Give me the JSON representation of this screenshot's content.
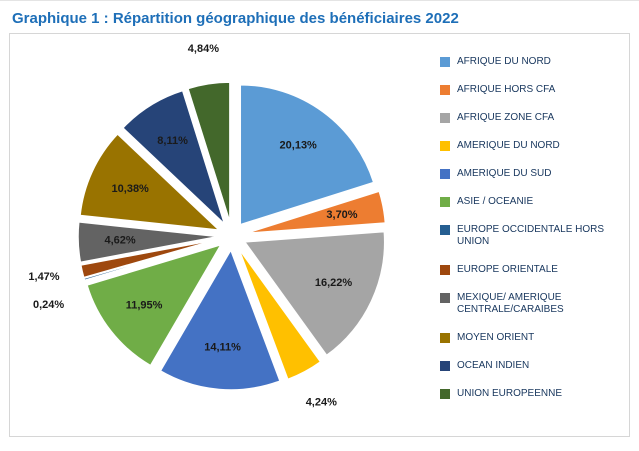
{
  "chart_data": {
    "type": "pie",
    "title": "Graphique 1 : Répartition géographique des bénéficiaires 2022",
    "start_angle_deg": 0,
    "direction": "clockwise",
    "exploded": true,
    "legend_position": "right",
    "value_format": "percent, french decimal comma",
    "slices": [
      {
        "label": "AFRIQUE DU NORD",
        "value": 20.13,
        "display": "20,13%",
        "color": "#5B9BD5",
        "label_placement": "inside"
      },
      {
        "label": "AFRIQUE HORS CFA",
        "value": 3.7,
        "display": "3,70%",
        "color": "#ED7D31",
        "label_placement": "inside"
      },
      {
        "label": "AFRIQUE ZONE CFA",
        "value": 16.22,
        "display": "16,22%",
        "color": "#A5A5A5",
        "label_placement": "inside"
      },
      {
        "label": "AMERIQUE DU NORD",
        "value": 4.24,
        "display": "4,24%",
        "color": "#FFC000",
        "label_placement": "outside"
      },
      {
        "label": "AMERIQUE DU SUD",
        "value": 14.11,
        "display": "14,11%",
        "color": "#4472C4",
        "label_placement": "inside"
      },
      {
        "label": "ASIE / OCEANIE",
        "value": 11.95,
        "display": "11,95%",
        "color": "#70AD47",
        "label_placement": "inside"
      },
      {
        "label": "EUROPE OCCIDENTALE HORS UNION",
        "value": 0.24,
        "display": "0,24%",
        "color": "#255E91",
        "label_placement": "outside"
      },
      {
        "label": "EUROPE ORIENTALE",
        "value": 1.47,
        "display": "1,47%",
        "color": "#9E480E",
        "label_placement": "outside"
      },
      {
        "label": "MEXIQUE/ AMERIQUE CENTRALE/CARAIBES",
        "value": 4.62,
        "display": "4,62%",
        "color": "#636363",
        "label_placement": "inside"
      },
      {
        "label": "MOYEN ORIENT",
        "value": 10.38,
        "display": "10,38%",
        "color": "#997300",
        "label_placement": "inside"
      },
      {
        "label": "OCEAN INDIEN",
        "value": 8.11,
        "display": "8,11%",
        "color": "#264478",
        "label_placement": "inside"
      },
      {
        "label": "UNION EUROPEENNE",
        "value": 4.84,
        "display": "4,84%",
        "color": "#43682B",
        "label_placement": "outside"
      }
    ]
  },
  "styles": {
    "title_color": "#1E6FB8",
    "legend_text_color": "#17365D",
    "chart_border_color": "#D6D6D6",
    "label_text_color": "#1a1a1a"
  }
}
